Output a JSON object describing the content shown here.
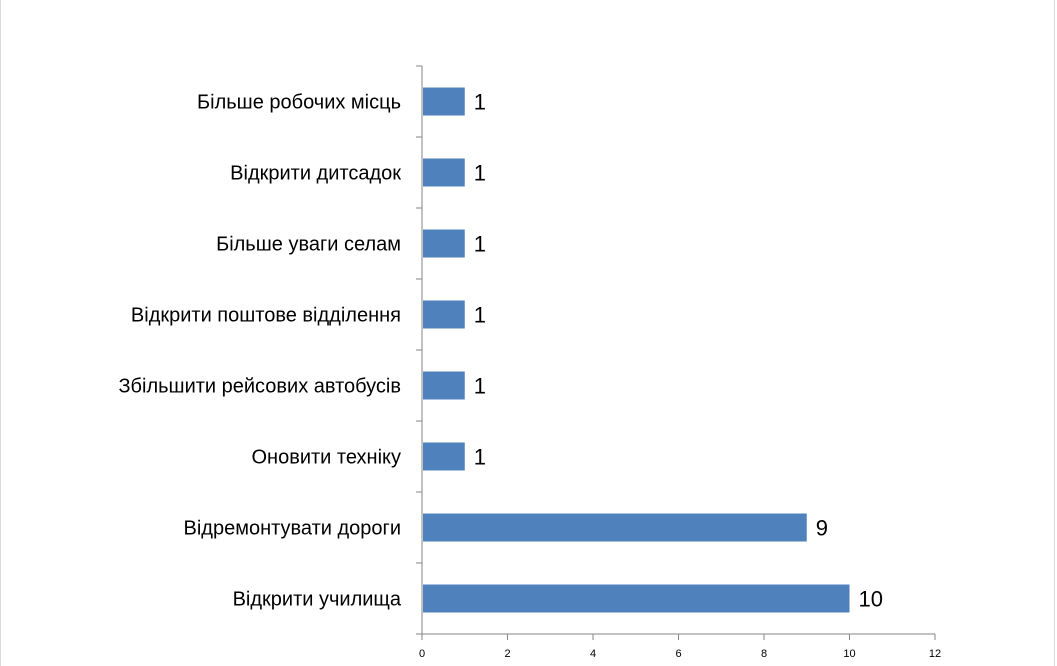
{
  "chart_data": {
    "type": "bar",
    "orientation": "horizontal",
    "categories": [
      "Більше робочих місць",
      "Відкрити дитсадок",
      "Більше уваги селам",
      "Відкрити поштове відділення",
      "Збільшити рейсових автобусів",
      "Оновити техніку",
      "Відремонтувати дороги",
      "Відкрити училища"
    ],
    "values": [
      1,
      1,
      1,
      1,
      1,
      1,
      9,
      10
    ],
    "data_labels": [
      "1",
      "1",
      "1",
      "1",
      "1",
      "1",
      "9",
      "10"
    ],
    "xlim": [
      0,
      12
    ],
    "x_ticks": [
      0,
      2,
      4,
      6,
      8,
      10,
      12
    ],
    "x_tick_labels": [
      "0",
      "2",
      "4",
      "6",
      "8",
      "10",
      "12"
    ],
    "bar_color": "#4f81bd",
    "grid": false,
    "legend": "none"
  }
}
